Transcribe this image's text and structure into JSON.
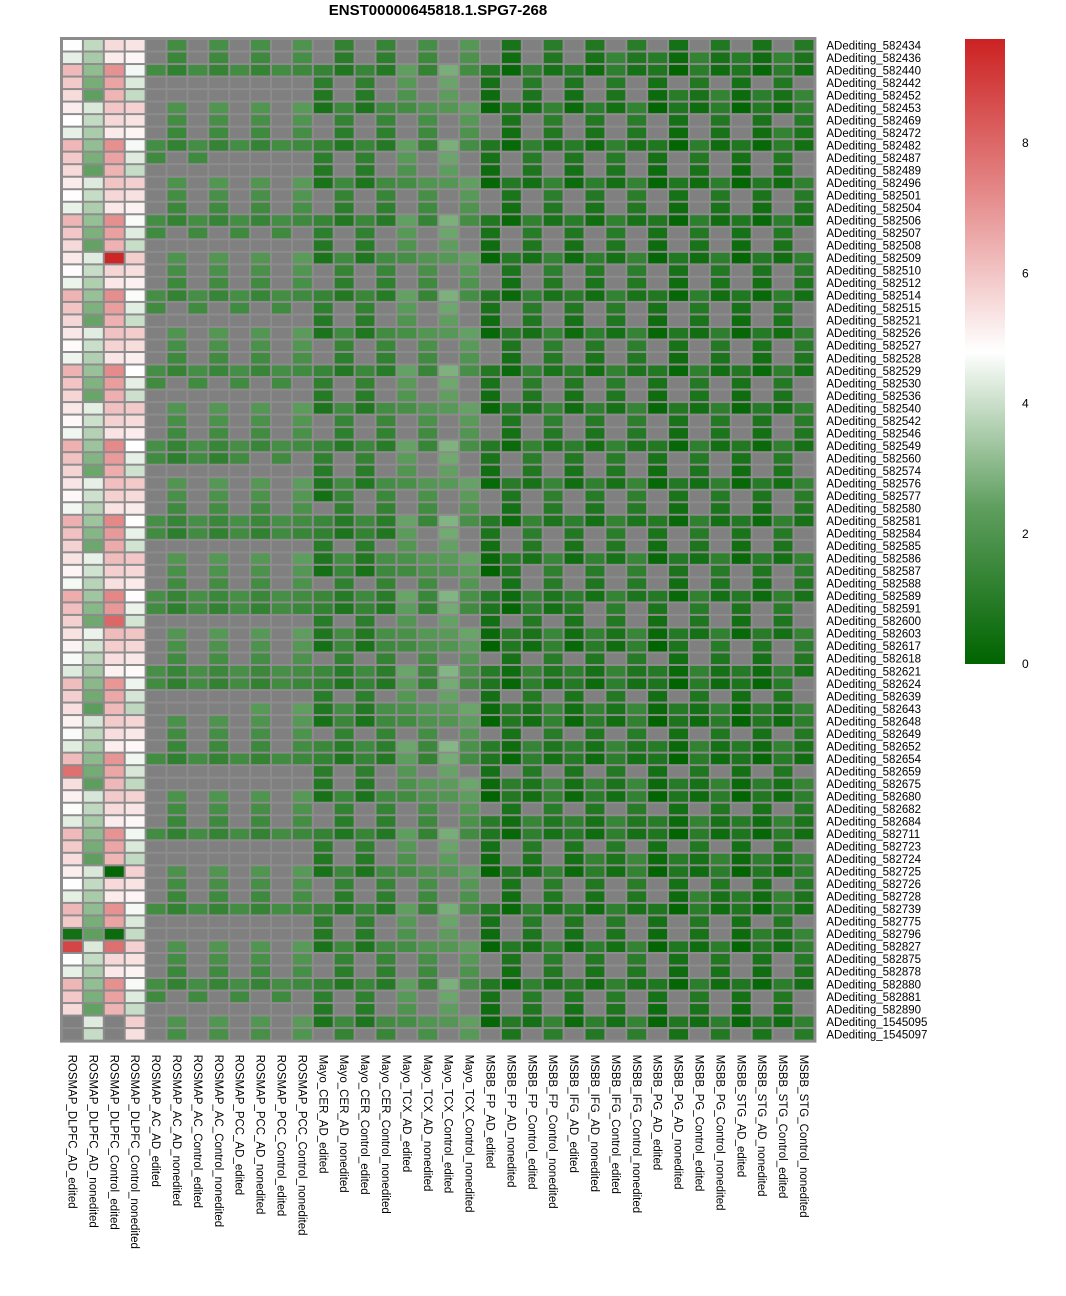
{
  "chart_data": {
    "type": "heatmap",
    "title": "ENST00000645818.1.SPG7-268",
    "columns": [
      "ROSMAP_DLPFC_AD_edited",
      "ROSMAP_DLPFC_AD_nonedited",
      "ROSMAP_DLPFC_Control_edited",
      "ROSMAP_DLPFC_Control_nonedited",
      "ROSMAP_AC_AD_edited",
      "ROSMAP_AC_AD_nonedited",
      "ROSMAP_AC_Control_edited",
      "ROSMAP_AC_Control_nonedited",
      "ROSMAP_PCC_AD_edited",
      "ROSMAP_PCC_AD_nonedited",
      "ROSMAP_PCC_Control_edited",
      "ROSMAP_PCC_Control_nonedited",
      "Mayo_CER_AD_edited",
      "Mayo_CER_AD_nonedited",
      "Mayo_CER_Control_edited",
      "Mayo_CER_Control_nonedited",
      "Mayo_TCX_AD_edited",
      "Mayo_TCX_AD_nonedited",
      "Mayo_TCX_Control_edited",
      "Mayo_TCX_Control_nonedited",
      "MSBB_FP_AD_edited",
      "MSBB_FP_AD_nonedited",
      "MSBB_FP_Control_edited",
      "MSBB_FP_Control_nonedited",
      "MSBB_IFG_AD_edited",
      "MSBB_IFG_AD_nonedited",
      "MSBB_IFG_Control_edited",
      "MSBB_IFG_Control_nonedited",
      "MSBB_PG_AD_edited",
      "MSBB_PG_AD_nonedited",
      "MSBB_PG_Control_edited",
      "MSBB_PG_Control_nonedited",
      "MSBB_STG_AD_edited",
      "MSBB_STG_AD_nonedited",
      "MSBB_STG_Control_edited",
      "MSBB_STG_Control_nonedited"
    ],
    "rows": [
      "ADediting_582434",
      "ADediting_582436",
      "ADediting_582440",
      "ADediting_582442",
      "ADediting_582452",
      "ADediting_582453",
      "ADediting_582469",
      "ADediting_582472",
      "ADediting_582482",
      "ADediting_582487",
      "ADediting_582489",
      "ADediting_582496",
      "ADediting_582501",
      "ADediting_582504",
      "ADediting_582506",
      "ADediting_582507",
      "ADediting_582508",
      "ADediting_582509",
      "ADediting_582510",
      "ADediting_582512",
      "ADediting_582514",
      "ADediting_582515",
      "ADediting_582521",
      "ADediting_582526",
      "ADediting_582527",
      "ADediting_582528",
      "ADediting_582529",
      "ADediting_582530",
      "ADediting_582536",
      "ADediting_582540",
      "ADediting_582542",
      "ADediting_582546",
      "ADediting_582549",
      "ADediting_582560",
      "ADediting_582574",
      "ADediting_582576",
      "ADediting_582577",
      "ADediting_582580",
      "ADediting_582581",
      "ADediting_582584",
      "ADediting_582585",
      "ADediting_582586",
      "ADediting_582587",
      "ADediting_582588",
      "ADediting_582589",
      "ADediting_582591",
      "ADediting_582600",
      "ADediting_582603",
      "ADediting_582617",
      "ADediting_582618",
      "ADediting_582621",
      "ADediting_582624",
      "ADediting_582639",
      "ADediting_582643",
      "ADediting_582648",
      "ADediting_582649",
      "ADediting_582652",
      "ADediting_582654",
      "ADediting_582659",
      "ADediting_582675",
      "ADediting_582680",
      "ADediting_582682",
      "ADediting_582684",
      "ADediting_582711",
      "ADediting_582723",
      "ADediting_582724",
      "ADediting_582725",
      "ADediting_582726",
      "ADediting_582728",
      "ADediting_582739",
      "ADediting_582775",
      "ADediting_582796",
      "ADediting_582827",
      "ADediting_582875",
      "ADediting_582878",
      "ADediting_582880",
      "ADediting_582881",
      "ADediting_582890",
      "ADediting_1545095",
      "ADediting_1545097"
    ],
    "color_scale": {
      "min": 0,
      "max": 9.6,
      "ticks": [
        0,
        2,
        4,
        6,
        8
      ],
      "stops": [
        {
          "value": 0,
          "color": "#006400"
        },
        {
          "value": 2.4,
          "color": "#5f9e5f"
        },
        {
          "value": 4.8,
          "color": "#ffffff"
        },
        {
          "value": 7.2,
          "color": "#e58a8a"
        },
        {
          "value": 9.6,
          "color": "#cc2222"
        }
      ],
      "na_color": "#808080"
    },
    "approximate_values": {
      "note": "Values estimated from cell colors; null = NA (grey). Rows follow the same order as 'rows'; each row lists the 36 columns.",
      "profile_by_column": [
        5.4,
        3.4,
        6.2,
        4.9,
        null,
        1.4,
        null,
        1.5,
        null,
        1.5,
        null,
        1.7,
        0.8,
        1.0,
        0.9,
        1.1,
        1.9,
        1.5,
        2.3,
        1.9,
        0.3,
        0.4,
        0.7,
        0.8,
        0.5,
        0.6,
        0.7,
        0.8,
        0.3,
        0.3,
        0.6,
        0.6,
        0.3,
        0.4,
        0.6,
        0.7
      ],
      "notable_cells": [
        {
          "row": "ADediting_582509",
          "column": "ROSMAP_DLPFC_Control_edited",
          "value": 9.5
        },
        {
          "row": "ADediting_582827",
          "column": "ROSMAP_DLPFC_AD_edited",
          "value": 8.8
        },
        {
          "row": "ADediting_582827",
          "column": "ROSMAP_DLPFC_Control_edited",
          "value": 7.8
        },
        {
          "row": "ADediting_582600",
          "column": "ROSMAP_DLPFC_Control_edited",
          "value": 8.0
        },
        {
          "row": "ADediting_582659",
          "column": "ROSMAP_DLPFC_AD_edited",
          "value": 7.8
        },
        {
          "row": "ADediting_582725",
          "column": "ROSMAP_DLPFC_Control_edited",
          "value": 0.1
        },
        {
          "row": "ADediting_582796",
          "column": "ROSMAP_DLPFC_AD_edited",
          "value": 0.5
        },
        {
          "row": "ADediting_582796",
          "column": "ROSMAP_DLPFC_Control_edited",
          "value": 0.3
        },
        {
          "row": "ADediting_1545095",
          "column": "ROSMAP_DLPFC_AD_edited",
          "value": null
        },
        {
          "row": "ADediting_1545097",
          "column": "ROSMAP_DLPFC_AD_edited",
          "value": null
        },
        {
          "row": "ADediting_1545095",
          "column": "ROSMAP_DLPFC_Control_edited",
          "value": null
        },
        {
          "row": "ADediting_1545097",
          "column": "ROSMAP_DLPFC_Control_edited",
          "value": null
        }
      ]
    }
  }
}
